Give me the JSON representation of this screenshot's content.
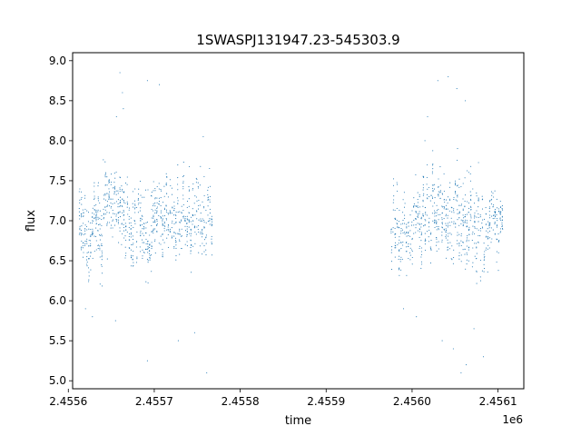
{
  "chart_data": {
    "type": "scatter",
    "title": "1SWASPJ131947.23-545303.9",
    "xlabel": "time",
    "ylabel": "flux",
    "x_offset_label": "1e6",
    "xlim": [
      2455605,
      2456130
    ],
    "ylim": [
      4.9,
      9.1
    ],
    "x_ticks": [
      2455600,
      2455700,
      2455800,
      2455900,
      2456000,
      2456100
    ],
    "x_tick_labels": [
      "2.4556",
      "2.4557",
      "2.4558",
      "2.4559",
      "2.4560",
      "2.4561"
    ],
    "y_ticks": [
      5.0,
      5.5,
      6.0,
      6.5,
      7.0,
      7.5,
      8.0,
      8.5,
      9.0
    ],
    "y_tick_labels": [
      "5.0",
      "5.5",
      "6.0",
      "6.5",
      "7.0",
      "7.5",
      "8.0",
      "8.5",
      "9.0"
    ],
    "grid": false,
    "marker_color": "#1f77b4",
    "series": [
      {
        "clusters": [
          {
            "x_range": [
              2455612,
              2455640
            ],
            "y_center": 6.85,
            "y_spread": 0.35
          },
          {
            "x_range": [
              2455640,
              2455672
            ],
            "y_center": 7.1,
            "y_spread": 0.35
          },
          {
            "x_range": [
              2455672,
              2455700
            ],
            "y_center": 6.95,
            "y_spread": 0.4
          },
          {
            "x_range": [
              2455700,
              2455735
            ],
            "y_center": 7.05,
            "y_spread": 0.35
          },
          {
            "x_range": [
              2455735,
              2455768
            ],
            "y_center": 6.95,
            "y_spread": 0.35
          },
          {
            "x_range": [
              2455975,
              2456012
            ],
            "y_center": 6.9,
            "y_spread": 0.35
          },
          {
            "x_range": [
              2456012,
              2456045
            ],
            "y_center": 7.1,
            "y_spread": 0.4
          },
          {
            "x_range": [
              2456045,
              2456085
            ],
            "y_center": 6.95,
            "y_spread": 0.45
          },
          {
            "x_range": [
              2456085,
              2456106
            ],
            "y_center": 6.95,
            "y_spread": 0.3
          }
        ],
        "outliers": [
          [
            2455660,
            8.85
          ],
          [
            2455663,
            8.6
          ],
          [
            2455692,
            8.75
          ],
          [
            2455706,
            8.7
          ],
          [
            2455692,
            5.25
          ],
          [
            2455728,
            5.5
          ],
          [
            2455761,
            5.1
          ],
          [
            2455655,
            5.75
          ],
          [
            2455620,
            5.9
          ],
          [
            2455628,
            5.8
          ],
          [
            2456030,
            8.75
          ],
          [
            2456042,
            8.8
          ],
          [
            2456052,
            8.65
          ],
          [
            2456062,
            8.5
          ],
          [
            2456057,
            5.1
          ],
          [
            2456063,
            5.2
          ],
          [
            2456035,
            5.5
          ],
          [
            2456048,
            5.4
          ],
          [
            2456072,
            5.65
          ],
          [
            2456083,
            5.3
          ],
          [
            2456018,
            8.3
          ],
          [
            2456005,
            5.8
          ],
          [
            2455990,
            5.9
          ],
          [
            2455656,
            8.3
          ],
          [
            2455664,
            8.4
          ],
          [
            2455757,
            8.05
          ],
          [
            2455747,
            5.6
          ],
          [
            2456015,
            8.0
          ]
        ]
      }
    ]
  }
}
